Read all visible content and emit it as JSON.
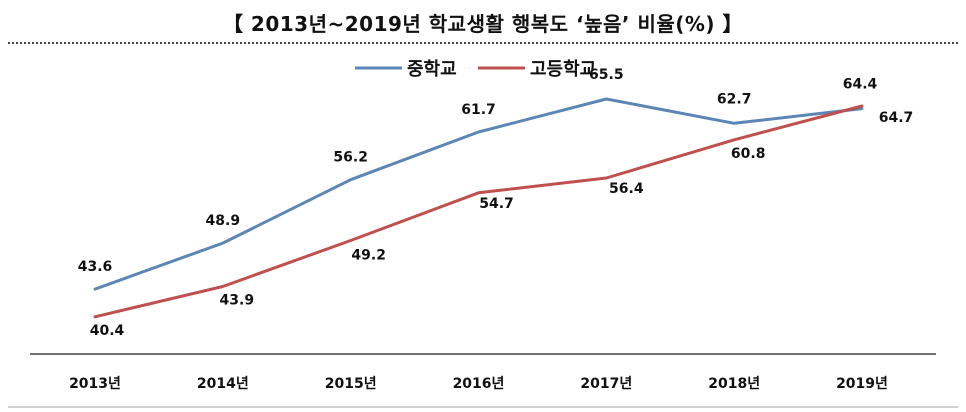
{
  "title": "【 2013년~2019년 학교생활 행복도 ‘높음’ 비율(%) 】",
  "colors": {
    "middle_school": "#5b86b5",
    "high_school": "#c0504d",
    "axis": "#444444"
  },
  "chart_data": {
    "type": "line",
    "title": "【 2013년~2019년 학교생활 행복도 ‘높음’ 비율(%) 】",
    "xlabel": "",
    "ylabel": "",
    "categories": [
      "2013년",
      "2014년",
      "2015년",
      "2016년",
      "2017년",
      "2018년",
      "2019년"
    ],
    "series": [
      {
        "name": "중학교",
        "values": [
          43.6,
          48.9,
          56.2,
          61.7,
          65.5,
          62.7,
          64.4
        ]
      },
      {
        "name": "고등학교",
        "values": [
          40.4,
          43.9,
          49.2,
          54.7,
          56.4,
          60.8,
          64.7
        ]
      }
    ],
    "ylim": [
      36,
      70
    ],
    "grid": false,
    "legend_position": "top-center"
  }
}
